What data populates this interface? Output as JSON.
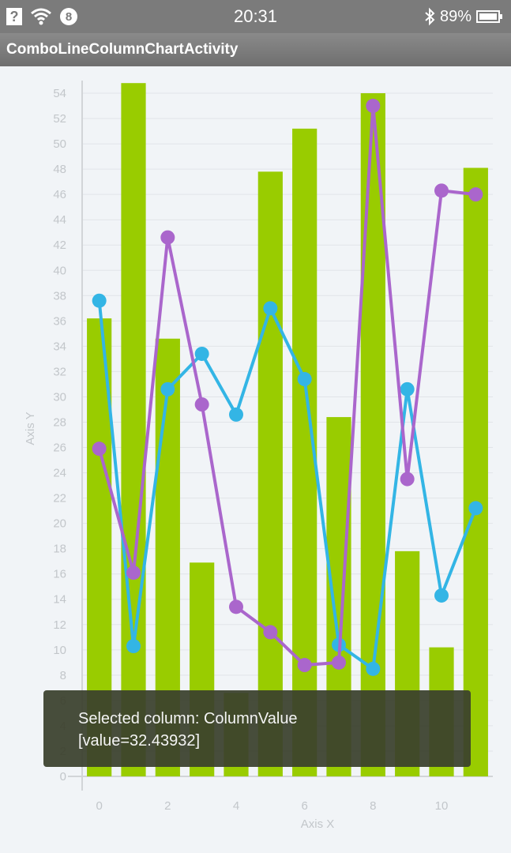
{
  "status_bar": {
    "time": "20:31",
    "battery": "89%",
    "notification_badge": "8",
    "icons": [
      "question-box-icon",
      "wifi-icon",
      "notification-badge-icon",
      "bluetooth-icon",
      "battery-icon"
    ]
  },
  "app_bar": {
    "title": "ComboLineColumnChartActivity"
  },
  "chart_data": {
    "type": "bar",
    "xlabel": "Axis X",
    "ylabel": "Axis Y",
    "xlim": [
      -0.5,
      11.5
    ],
    "ylim": [
      0,
      55
    ],
    "x_ticks": [
      "0",
      "2",
      "4",
      "6",
      "8",
      "10"
    ],
    "y_ticks": [
      "0",
      "2",
      "4",
      "6",
      "8",
      "10",
      "12",
      "14",
      "16",
      "18",
      "20",
      "22",
      "24",
      "26",
      "28",
      "30",
      "32",
      "34",
      "36",
      "38",
      "40",
      "42",
      "44",
      "46",
      "48",
      "50",
      "52",
      "54"
    ],
    "grid": true,
    "columns": {
      "color": "#99cc00",
      "x": [
        0,
        1,
        2,
        3,
        4,
        5,
        6,
        7,
        8,
        9,
        10,
        11
      ],
      "values": [
        36.2,
        54.8,
        34.6,
        16.9,
        6.6,
        47.8,
        51.2,
        28.4,
        54.0,
        17.8,
        10.2,
        48.1
      ]
    },
    "series": [
      {
        "type": "line",
        "color": "#33b5e5",
        "x": [
          0,
          1,
          2,
          3,
          4,
          5,
          6,
          7,
          8,
          9,
          10,
          11
        ],
        "values": [
          37.6,
          10.3,
          30.6,
          33.4,
          28.6,
          37.0,
          31.4,
          10.4,
          8.5,
          30.6,
          14.3,
          21.2
        ]
      },
      {
        "type": "line",
        "color": "#aa66cc",
        "x": [
          0,
          1,
          2,
          3,
          4,
          5,
          6,
          7,
          8,
          9,
          10,
          11
        ],
        "values": [
          25.9,
          16.1,
          42.6,
          29.4,
          13.4,
          11.4,
          8.8,
          9.0,
          53.0,
          23.5,
          46.3,
          46.0
        ]
      }
    ]
  },
  "toast": {
    "line1": "Selected column: ColumnValue",
    "line2": "[value=32.43932]"
  }
}
